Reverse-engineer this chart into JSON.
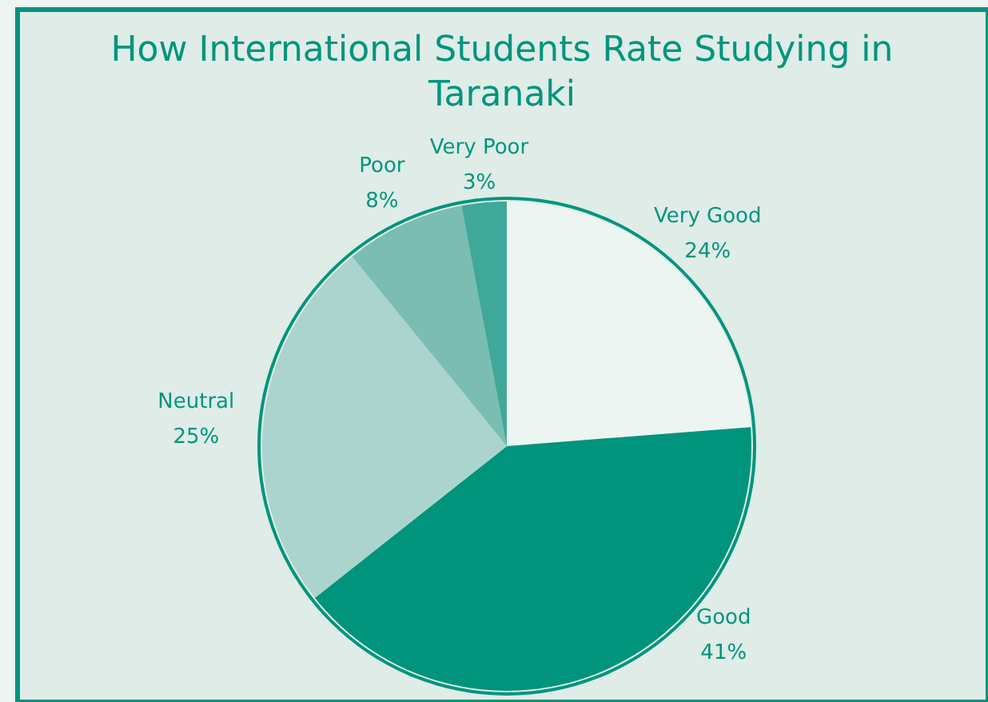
{
  "chart_data": {
    "type": "pie",
    "title": "How International Students Rate Studying in Taranaki",
    "categories": [
      "Very Good",
      "Good",
      "Neutral",
      "Poor",
      "Very Poor"
    ],
    "values": [
      24,
      41,
      25,
      8,
      3
    ],
    "colors": [
      "#ecf5f2",
      "#00947c",
      "#acd4cf",
      "#7bbdb3",
      "#40a898"
    ],
    "value_labels": [
      "24%",
      "41%",
      "25%",
      "8%",
      "3%"
    ]
  }
}
